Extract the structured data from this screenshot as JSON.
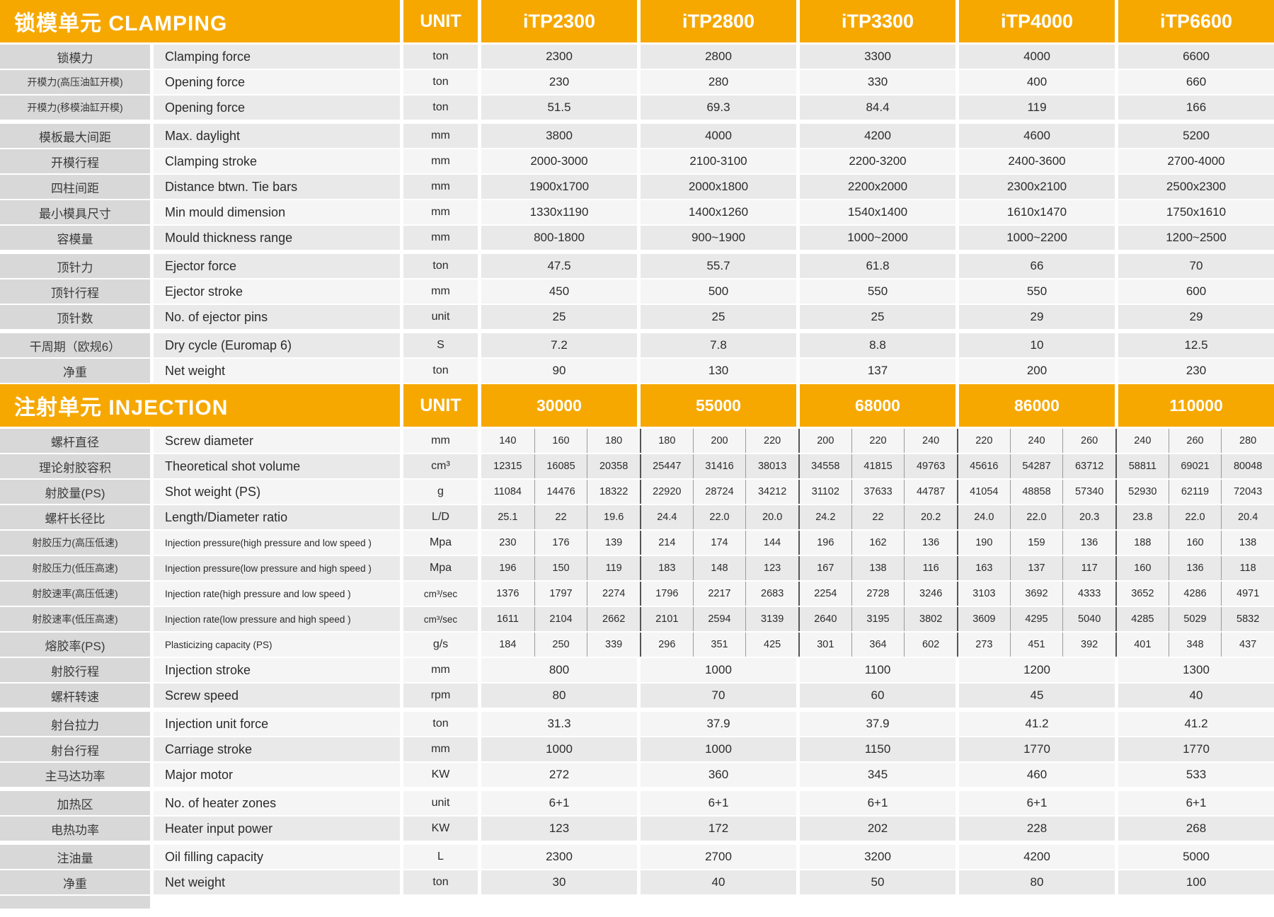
{
  "colors": {
    "orange": "#F6A800",
    "header_text": "#FFFFFF",
    "label_bg": "#D8D8D8",
    "row_dark": "#E9E9E9",
    "row_light": "#F5F5F5",
    "divider_dark": "#555555",
    "divider_light": "#9A9A9A",
    "text": "#2B2B2B"
  },
  "header": {
    "clamping_title": "锁模单元 CLAMPING",
    "unit_label": "UNIT",
    "models": [
      "iTP2300",
      "iTP2800",
      "iTP3300",
      "iTP4000",
      "iTP6600"
    ]
  },
  "clamping": {
    "rows": [
      {
        "zh": "锁模力",
        "en": "Clamping force",
        "unit": "ton",
        "values": [
          "2300",
          "2800",
          "3300",
          "4000",
          "6600"
        ]
      },
      {
        "zh": "开模力(高压油缸开模)",
        "en": "Opening force",
        "unit": "ton",
        "values": [
          "230",
          "280",
          "330",
          "400",
          "660"
        ]
      },
      {
        "zh": "开模力(移模油缸开模)",
        "en": "Opening force",
        "unit": "ton",
        "values": [
          "51.5",
          "69.3",
          "84.4",
          "119",
          "166"
        ]
      },
      {
        "zh": "模板最大间距",
        "en": "Max. daylight",
        "unit": "mm",
        "values": [
          "3800",
          "4000",
          "4200",
          "4600",
          "5200"
        ]
      },
      {
        "zh": "开模行程",
        "en": "Clamping stroke",
        "unit": "mm",
        "values": [
          "2000-3000",
          "2100-3100",
          "2200-3200",
          "2400-3600",
          "2700-4000"
        ]
      },
      {
        "zh": "四柱间距",
        "en": "Distance btwn. Tie bars",
        "unit": "mm",
        "values": [
          "1900x1700",
          "2000x1800",
          "2200x2000",
          "2300x2100",
          "2500x2300"
        ]
      },
      {
        "zh": "最小模具尺寸",
        "en": "Min mould dimension",
        "unit": "mm",
        "values": [
          "1330x1190",
          "1400x1260",
          "1540x1400",
          "1610x1470",
          "1750x1610"
        ]
      },
      {
        "zh": "容模量",
        "en": "Mould thickness range",
        "unit": "mm",
        "values": [
          "800-1800",
          "900~1900",
          "1000~2000",
          "1000~2200",
          "1200~2500"
        ]
      },
      {
        "zh": "顶针力",
        "en": "Ejector force",
        "unit": "ton",
        "values": [
          "47.5",
          "55.7",
          "61.8",
          "66",
          "70"
        ]
      },
      {
        "zh": "顶针行程",
        "en": "Ejector stroke",
        "unit": "mm",
        "values": [
          "450",
          "500",
          "550",
          "550",
          "600"
        ]
      },
      {
        "zh": "顶针数",
        "en": "No. of ejector pins",
        "unit": "unit",
        "values": [
          "25",
          "25",
          "25",
          "29",
          "29"
        ]
      },
      {
        "zh": "干周期（欧规6）",
        "en": "Dry cycle (Euromap 6)",
        "unit": "S",
        "values": [
          "7.2",
          "7.8",
          "8.8",
          "10",
          "12.5"
        ]
      },
      {
        "zh": "净重",
        "en": "Net weight",
        "unit": "ton",
        "values": [
          "90",
          "130",
          "137",
          "200",
          "230"
        ]
      }
    ]
  },
  "injection": {
    "title": "注射单元 INJECTION",
    "unit_label": "UNIT",
    "sizes": [
      "30000",
      "55000",
      "68000",
      "86000",
      "110000"
    ],
    "sub_rows": [
      {
        "zh": "螺杆直径",
        "en": "Screw diameter",
        "unit": "mm",
        "values": [
          "140",
          "160",
          "180",
          "180",
          "200",
          "220",
          "200",
          "220",
          "240",
          "220",
          "240",
          "260",
          "240",
          "260",
          "280"
        ]
      },
      {
        "zh": "理论射胶容积",
        "en": "Theoretical shot volume",
        "unit": "cm³",
        "values": [
          "12315",
          "16085",
          "20358",
          "25447",
          "31416",
          "38013",
          "34558",
          "41815",
          "49763",
          "45616",
          "54287",
          "63712",
          "58811",
          "69021",
          "80048"
        ]
      },
      {
        "zh": "射胶量(PS)",
        "en": "Shot weight (PS)",
        "unit": "g",
        "values": [
          "11084",
          "14476",
          "18322",
          "22920",
          "28724",
          "34212",
          "31102",
          "37633",
          "44787",
          "41054",
          "48858",
          "57340",
          "52930",
          "62119",
          "72043"
        ]
      },
      {
        "zh": "螺杆长径比",
        "en": "Length/Diameter ratio",
        "unit": "L/D",
        "values": [
          "25.1",
          "22",
          "19.6",
          "24.4",
          "22.0",
          "20.0",
          "24.2",
          "22",
          "20.2",
          "24.0",
          "22.0",
          "20.3",
          "23.8",
          "22.0",
          "20.4"
        ]
      },
      {
        "zh": "射胶压力(高压低速)",
        "en": "Injection pressure(high pressure and low speed )",
        "unit": "Mpa",
        "values": [
          "230",
          "176",
          "139",
          "214",
          "174",
          "144",
          "196",
          "162",
          "136",
          "190",
          "159",
          "136",
          "188",
          "160",
          "138"
        ]
      },
      {
        "zh": "射胶压力(低压高速)",
        "en": "Injection pressure(low pressure and high speed )",
        "unit": "Mpa",
        "values": [
          "196",
          "150",
          "119",
          "183",
          "148",
          "123",
          "167",
          "138",
          "116",
          "163",
          "137",
          "117",
          "160",
          "136",
          "118"
        ]
      },
      {
        "zh": "射胶速率(高压低速)",
        "en": "Injection rate(high pressure and low speed )",
        "unit": "cm³/sec",
        "values": [
          "1376",
          "1797",
          "2274",
          "1796",
          "2217",
          "2683",
          "2254",
          "2728",
          "3246",
          "3103",
          "3692",
          "4333",
          "3652",
          "4286",
          "4971"
        ]
      },
      {
        "zh": "射胶速率(低压高速)",
        "en": "Injection rate(low pressure and high speed )",
        "unit": "cm³/sec",
        "values": [
          "1611",
          "2104",
          "2662",
          "2101",
          "2594",
          "3139",
          "2640",
          "3195",
          "3802",
          "3609",
          "4295",
          "5040",
          "4285",
          "5029",
          "5832"
        ]
      },
      {
        "zh": "熔胶率(PS)",
        "en": "Plasticizing capacity (PS)",
        "unit": "g/s",
        "values": [
          "184",
          "250",
          "339",
          "296",
          "351",
          "425",
          "301",
          "364",
          "602",
          "273",
          "451",
          "392",
          "401",
          "348",
          "437"
        ]
      }
    ],
    "full_rows": [
      {
        "zh": "射胶行程",
        "en": "Injection stroke",
        "unit": "mm",
        "values": [
          "800",
          "1000",
          "1100",
          "1200",
          "1300"
        ]
      },
      {
        "zh": "螺杆转速",
        "en": "Screw speed",
        "unit": "rpm",
        "values": [
          "80",
          "70",
          "60",
          "45",
          "40"
        ]
      },
      {
        "zh": "射台拉力",
        "en": "Injection unit force",
        "unit": "ton",
        "values": [
          "31.3",
          "37.9",
          "37.9",
          "41.2",
          "41.2"
        ]
      },
      {
        "zh": "射台行程",
        "en": "Carriage stroke",
        "unit": "mm",
        "values": [
          "1000",
          "1000",
          "1150",
          "1770",
          "1770"
        ]
      },
      {
        "zh": "主马达功率",
        "en": "Major motor",
        "unit": "KW",
        "values": [
          "272",
          "360",
          "345",
          "460",
          "533"
        ]
      },
      {
        "zh": "加热区",
        "en": "No. of heater zones",
        "unit": "unit",
        "values": [
          "6+1",
          "6+1",
          "6+1",
          "6+1",
          "6+1"
        ]
      },
      {
        "zh": "电热功率",
        "en": "Heater input power",
        "unit": "KW",
        "values": [
          "123",
          "172",
          "202",
          "228",
          "268"
        ]
      },
      {
        "zh": "注油量",
        "en": "Oil filling capacity",
        "unit": "L",
        "values": [
          "2300",
          "2700",
          "3200",
          "4200",
          "5000"
        ]
      },
      {
        "zh": "净重",
        "en": "Net weight",
        "unit": "ton",
        "values": [
          "30",
          "40",
          "50",
          "80",
          "100"
        ]
      }
    ]
  }
}
